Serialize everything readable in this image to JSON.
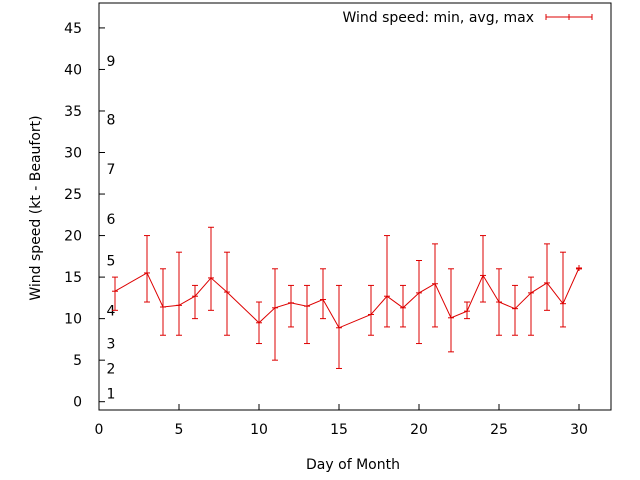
{
  "chart_data": {
    "type": "line",
    "title": "",
    "xlabel": "Day of Month",
    "ylabel": "Wind speed (kt - Beaufort)",
    "xlim": [
      0,
      32
    ],
    "ylim": [
      -1,
      48
    ],
    "x_ticks": [
      0,
      5,
      10,
      15,
      20,
      25,
      30
    ],
    "y_ticks": [
      0,
      5,
      10,
      15,
      20,
      25,
      30,
      35,
      40,
      45
    ],
    "grid": false,
    "legend_position": "top-right",
    "color": "#dd0000",
    "series": [
      {
        "name": "Wind speed: min, avg, max",
        "x": [
          1,
          3,
          4,
          5,
          6,
          7,
          8,
          10,
          11,
          12,
          13,
          14,
          15,
          17,
          18,
          19,
          20,
          21,
          22,
          23,
          24,
          25,
          26,
          27,
          28,
          29,
          30
        ],
        "avg": [
          13.3,
          15.5,
          11.4,
          11.6,
          12.7,
          14.9,
          13.2,
          9.5,
          11.3,
          11.9,
          11.5,
          12.3,
          8.9,
          10.5,
          12.7,
          11.3,
          13.1,
          14.2,
          10.1,
          10.9,
          15.2,
          12.0,
          11.2,
          13.1,
          14.3,
          11.8,
          16.1
        ],
        "min": [
          11,
          12,
          8,
          8,
          10,
          11,
          8,
          7,
          5,
          9,
          7,
          10,
          4,
          8,
          9,
          9,
          7,
          9,
          6,
          10,
          12,
          8,
          8,
          8,
          11,
          9,
          16
        ],
        "max": [
          15,
          20,
          16,
          18,
          14,
          21,
          18,
          12,
          16,
          14,
          14,
          16,
          14,
          14,
          20,
          14,
          17,
          19,
          16,
          12,
          20,
          16,
          14,
          15,
          19,
          18,
          16
        ]
      }
    ],
    "annotations": {
      "beaufort_labels": [
        {
          "label": "1",
          "y": 1
        },
        {
          "label": "2",
          "y": 4
        },
        {
          "label": "3",
          "y": 7
        },
        {
          "label": "4",
          "y": 11
        },
        {
          "label": "5",
          "y": 17
        },
        {
          "label": "6",
          "y": 22
        },
        {
          "label": "7",
          "y": 28
        },
        {
          "label": "8",
          "y": 34
        },
        {
          "label": "9",
          "y": 41
        }
      ]
    }
  }
}
